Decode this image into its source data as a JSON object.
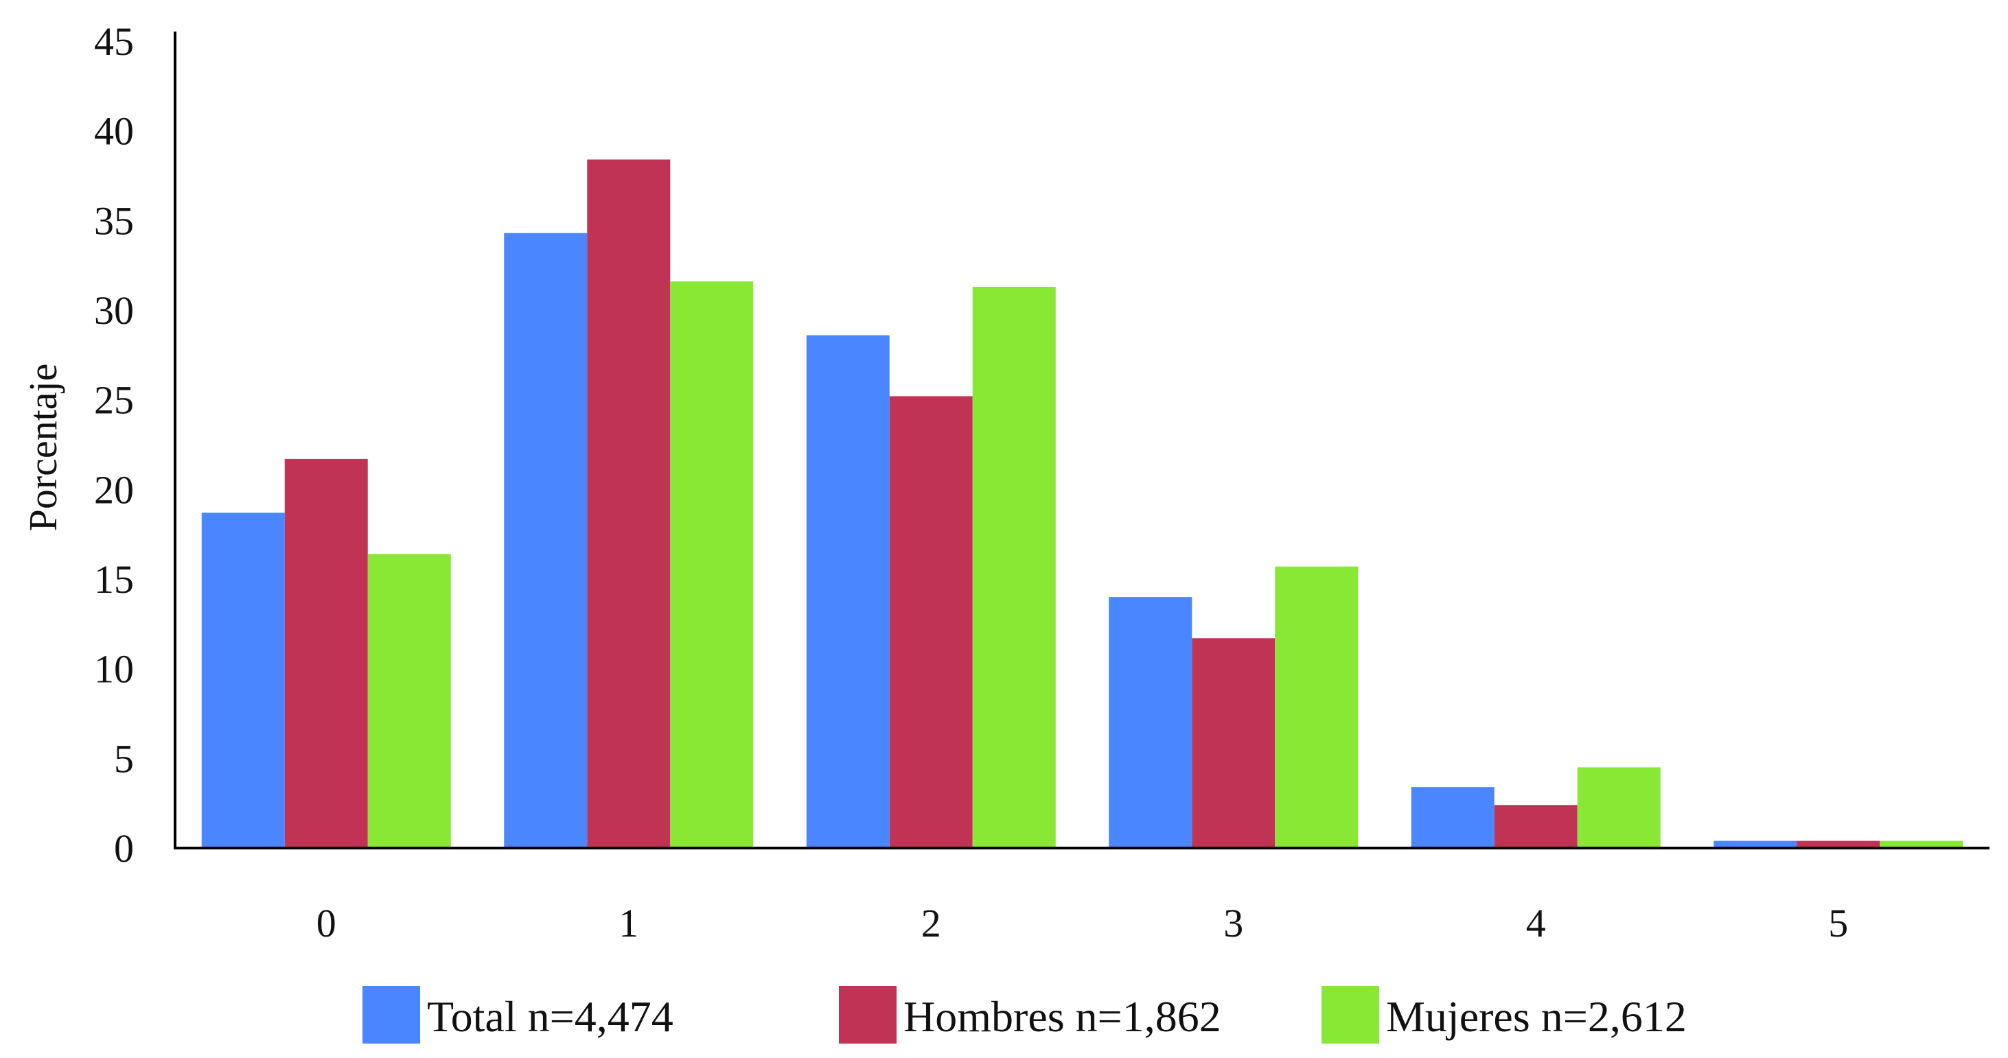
{
  "chart_data": {
    "type": "bar",
    "title": "",
    "xlabel": "",
    "ylabel": "Porcentaje",
    "categories": [
      "0",
      "1",
      "2",
      "3",
      "4",
      "5"
    ],
    "ylim": [
      0,
      45
    ],
    "yticks": [
      "0",
      "5",
      "10",
      "15",
      "20",
      "25",
      "30",
      "35",
      "40",
      "45"
    ],
    "grid": false,
    "legend_position": "bottom",
    "series": [
      {
        "name": "Total n=4,474",
        "color": "#4a86ff",
        "values": [
          18.7,
          34.3,
          28.6,
          14.0,
          3.4,
          0.4
        ]
      },
      {
        "name": "Hombres n=1,862",
        "color": "#c03355",
        "values": [
          21.7,
          38.4,
          25.2,
          11.7,
          2.4,
          0.4
        ]
      },
      {
        "name": "Mujeres n=2,612",
        "color": "#88e833",
        "values": [
          16.4,
          31.6,
          31.3,
          15.7,
          4.5,
          0.4
        ]
      }
    ]
  }
}
